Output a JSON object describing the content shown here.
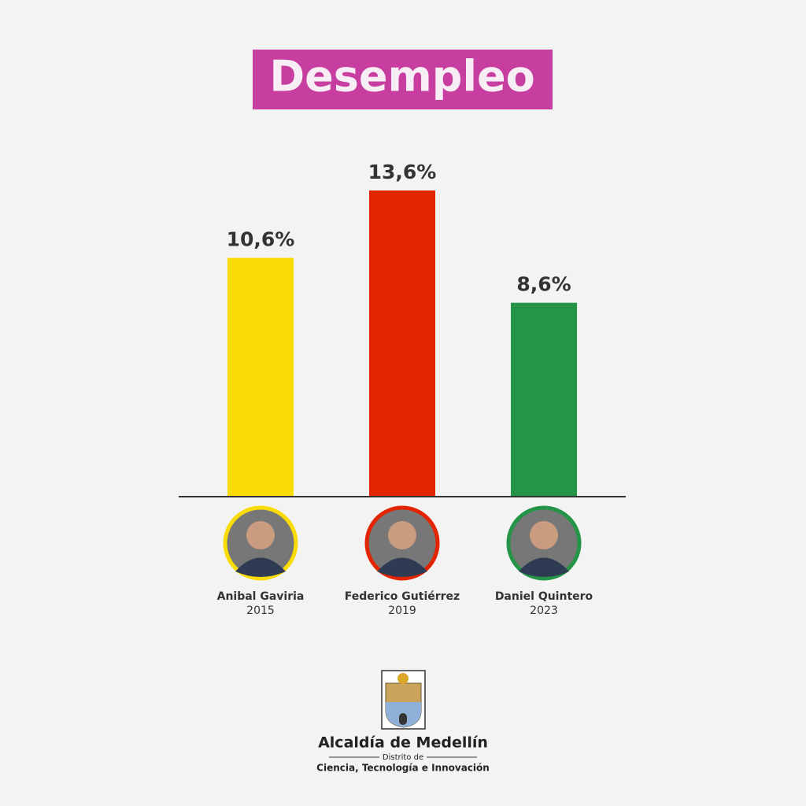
{
  "chart_data": {
    "type": "bar",
    "title": "Desempleo",
    "categories": [
      "Anibal Gaviria",
      "Federico Gutiérrez",
      "Daniel Quintero"
    ],
    "years": [
      "2015",
      "2019",
      "2023"
    ],
    "values": [
      10.6,
      13.6,
      8.6
    ],
    "value_labels": [
      "10,6%",
      "13,6%",
      "8,6%"
    ],
    "colors": [
      "#f9dc05",
      "#e32400",
      "#249447"
    ]
  },
  "footer": {
    "title": "Alcaldía de Medellín",
    "subtitle": "Distrito de",
    "tagline": "Ciencia, Tecnología e Innovación"
  }
}
